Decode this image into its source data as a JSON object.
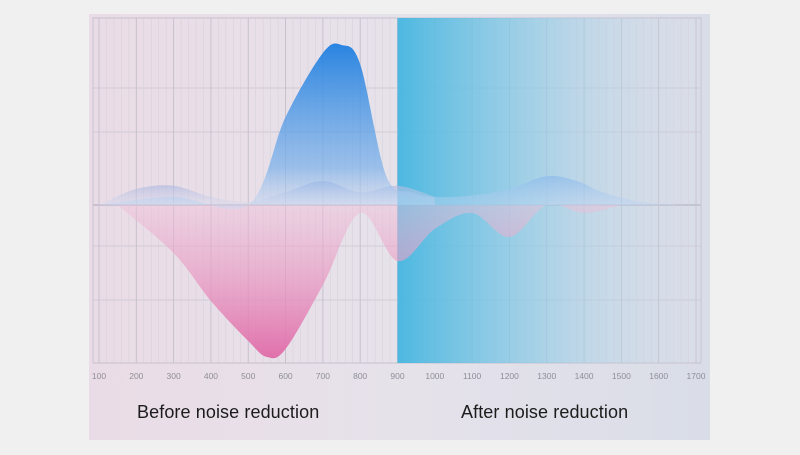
{
  "chart_data": {
    "type": "area",
    "x_ticks": [
      "100",
      "200",
      "300",
      "400",
      "500",
      "600",
      "700",
      "800",
      "900",
      "1000",
      "1100",
      "1200",
      "1300",
      "1400",
      "1500",
      "1600",
      "1700"
    ],
    "xlim": [
      100,
      1700
    ],
    "ylim": [
      -1,
      1
    ],
    "divider_x": 900,
    "series": [
      {
        "color": "#3a86d8",
        "x": [
          100,
          300,
          500,
          600,
          700,
          750,
          800,
          870,
          940,
          1000,
          1100,
          1200,
          1300,
          1380,
          1450,
          1550,
          1650
        ],
        "y": [
          0.0,
          0.05,
          0.0,
          0.55,
          0.95,
          1.0,
          0.88,
          0.18,
          0.08,
          0.05,
          0.06,
          0.1,
          0.18,
          0.15,
          0.08,
          0.02,
          0.0
        ]
      },
      {
        "color": "#e07aae",
        "x": [
          150,
          300,
          400,
          500,
          550,
          600,
          700,
          800,
          900,
          1000,
          1100,
          1200,
          1300,
          1400,
          1500
        ],
        "y": [
          0.0,
          -0.3,
          -0.6,
          -0.85,
          -0.95,
          -0.9,
          -0.5,
          -0.05,
          -0.35,
          -0.15,
          -0.05,
          -0.2,
          0.0,
          -0.05,
          0.0
        ]
      },
      {
        "color": "#aab4de",
        "x": [
          100,
          200,
          300,
          400,
          500,
          600,
          700,
          800,
          900,
          1000
        ],
        "y": [
          0.0,
          0.1,
          0.12,
          0.05,
          0.02,
          0.08,
          0.15,
          0.08,
          0.12,
          0.05
        ]
      }
    ],
    "captions": [
      "Before noise reduction",
      "After noise reduction"
    ]
  }
}
